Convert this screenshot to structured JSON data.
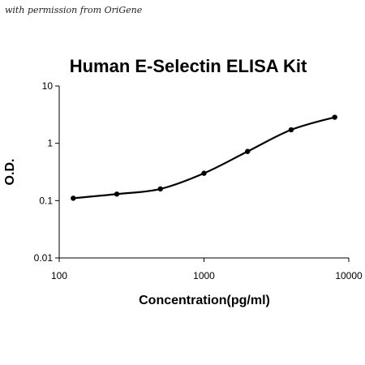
{
  "credit": "with permission from OriGene",
  "chart_data": {
    "type": "scatter",
    "title": "Human E-Selectin ELISA Kit",
    "xlabel": "Concentration(pg/ml)",
    "ylabel": "O.D.",
    "x_scale": "log",
    "y_scale": "log",
    "xlim": [
      100,
      10000
    ],
    "ylim": [
      0.01,
      10
    ],
    "x_ticks": [
      "100",
      "1000",
      "10000"
    ],
    "y_ticks": [
      "0.01",
      "0.1",
      "1",
      "10"
    ],
    "grid": false,
    "legend": "none",
    "fit_line": "smooth curve through points",
    "colors": {
      "line": "#000000",
      "points": "#000000",
      "axis": "#000000"
    },
    "series": [
      {
        "x": [
          125,
          250,
          500,
          1000,
          2000,
          4000,
          8000
        ],
        "y": [
          0.11,
          0.13,
          0.16,
          0.3,
          0.72,
          1.72,
          2.85
        ]
      }
    ]
  }
}
